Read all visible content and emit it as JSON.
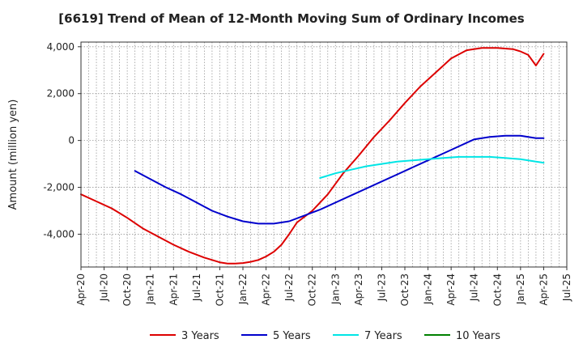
{
  "chart_data": {
    "type": "line",
    "title": "[6619]  Trend of Mean of 12-Month Moving Sum of Ordinary Incomes",
    "xlabel": "",
    "ylabel": "Amount (million yen)",
    "ylim": [
      -5400,
      4200
    ],
    "y_ticks": [
      4000,
      2000,
      0,
      -2000,
      -4000
    ],
    "y_tick_labels": [
      "4,000",
      "2,000",
      "0",
      "-2,000",
      "-4,000"
    ],
    "x_range_months": [
      0,
      63
    ],
    "x_ticks": [
      {
        "month": 0,
        "label": "Apr-20"
      },
      {
        "month": 3,
        "label": "Jul-20"
      },
      {
        "month": 6,
        "label": "Oct-20"
      },
      {
        "month": 9,
        "label": "Jan-21"
      },
      {
        "month": 12,
        "label": "Apr-21"
      },
      {
        "month": 15,
        "label": "Jul-21"
      },
      {
        "month": 18,
        "label": "Oct-21"
      },
      {
        "month": 21,
        "label": "Jan-22"
      },
      {
        "month": 24,
        "label": "Apr-22"
      },
      {
        "month": 27,
        "label": "Jul-22"
      },
      {
        "month": 30,
        "label": "Oct-22"
      },
      {
        "month": 33,
        "label": "Jan-23"
      },
      {
        "month": 36,
        "label": "Apr-23"
      },
      {
        "month": 39,
        "label": "Jul-23"
      },
      {
        "month": 42,
        "label": "Oct-23"
      },
      {
        "month": 45,
        "label": "Jan-24"
      },
      {
        "month": 48,
        "label": "Apr-24"
      },
      {
        "month": 51,
        "label": "Jul-24"
      },
      {
        "month": 54,
        "label": "Oct-24"
      },
      {
        "month": 57,
        "label": "Jan-25"
      },
      {
        "month": 60,
        "label": "Apr-25"
      },
      {
        "month": 63,
        "label": "Jul-25"
      }
    ],
    "grid": true,
    "legend_position": "bottom",
    "series": [
      {
        "name": "3 Years",
        "color": "#dd0000",
        "x": [
          0,
          2,
          4,
          5,
          6,
          8,
          10,
          12,
          14,
          16,
          18,
          19,
          20,
          21,
          22,
          23,
          24,
          25,
          26,
          27,
          28,
          30,
          32,
          34,
          36,
          38,
          40,
          42,
          44,
          46,
          48,
          50,
          52,
          54,
          56,
          57,
          58,
          59,
          60
        ],
        "y": [
          -2300,
          -2600,
          -2900,
          -3100,
          -3300,
          -3750,
          -4100,
          -4450,
          -4750,
          -5000,
          -5200,
          -5250,
          -5250,
          -5230,
          -5180,
          -5100,
          -4950,
          -4750,
          -4450,
          -4000,
          -3500,
          -3000,
          -2300,
          -1400,
          -650,
          150,
          850,
          1600,
          2300,
          2900,
          3500,
          3850,
          3950,
          3950,
          3900,
          3800,
          3650,
          3200,
          3700
        ]
      },
      {
        "name": "5 Years",
        "color": "#0000cc",
        "x": [
          7,
          9,
          11,
          13,
          15,
          17,
          19,
          21,
          23,
          25,
          27,
          29,
          31,
          33,
          35,
          37,
          39,
          41,
          43,
          45,
          47,
          49,
          51,
          53,
          55,
          57,
          58,
          59,
          60
        ],
        "y": [
          -1300,
          -1650,
          -2000,
          -2300,
          -2650,
          -3000,
          -3250,
          -3450,
          -3550,
          -3550,
          -3450,
          -3200,
          -2950,
          -2650,
          -2350,
          -2050,
          -1750,
          -1450,
          -1150,
          -850,
          -550,
          -250,
          50,
          150,
          200,
          200,
          150,
          100,
          100
        ]
      },
      {
        "name": "7 Years",
        "color": "#00e5e5",
        "x": [
          31,
          33,
          35,
          37,
          39,
          41,
          43,
          45,
          47,
          49,
          51,
          53,
          55,
          57,
          59,
          60
        ],
        "y": [
          -1600,
          -1400,
          -1250,
          -1100,
          -1000,
          -900,
          -850,
          -800,
          -750,
          -700,
          -700,
          -700,
          -750,
          -800,
          -900,
          -950
        ]
      },
      {
        "name": "10 Years",
        "color": "#008000",
        "x": [],
        "y": []
      }
    ]
  }
}
